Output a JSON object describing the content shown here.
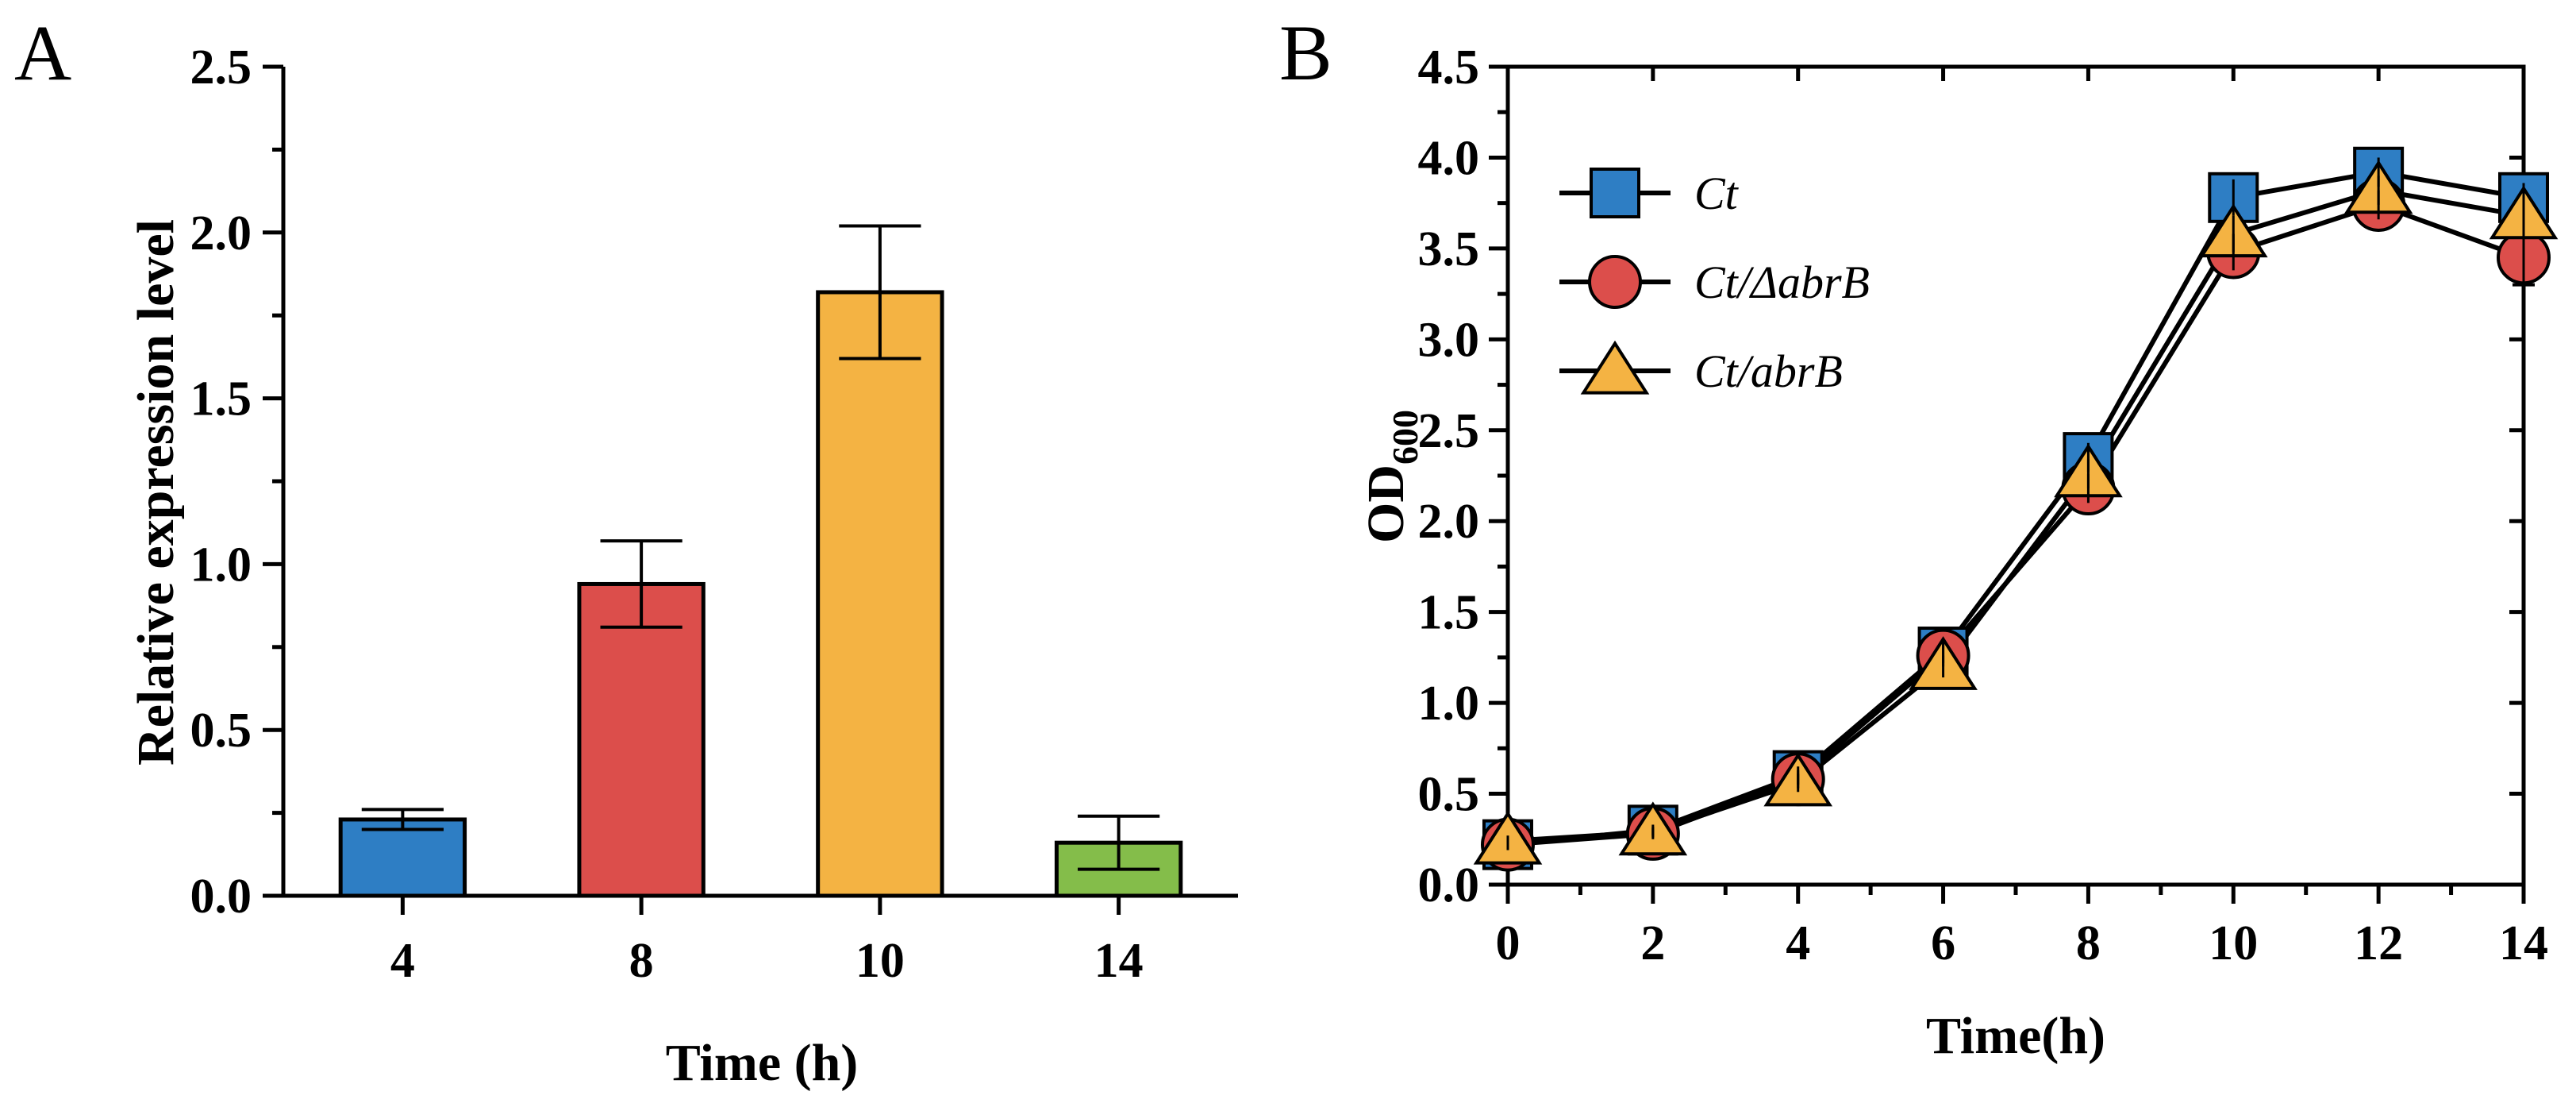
{
  "chart_data": [
    {
      "panel": "A",
      "type": "bar",
      "title": "",
      "xlabel": "Time (h)",
      "ylabel": "Relative expression level",
      "categories": [
        "4",
        "8",
        "10",
        "14"
      ],
      "values": [
        0.23,
        0.94,
        1.82,
        0.16
      ],
      "errors": [
        0.03,
        0.13,
        0.2,
        0.08
      ],
      "colors": [
        "#2e7ec4",
        "#dc4e4b",
        "#f4b343",
        "#84bd4a"
      ],
      "ylim": [
        0,
        2.5
      ],
      "yticks": [
        "0.0",
        "0.5",
        "1.0",
        "1.5",
        "2.0",
        "2.5"
      ],
      "grid": false
    },
    {
      "panel": "B",
      "type": "line",
      "title": "",
      "xlabel": "Time(h)",
      "ylabel": "OD",
      "ylabel_sub": "600",
      "x": [
        0,
        2,
        4,
        6,
        8,
        10,
        12,
        14
      ],
      "xlim": [
        0,
        14
      ],
      "ylim": [
        0,
        4.5
      ],
      "xticks": [
        "0",
        "2",
        "4",
        "6",
        "8",
        "10",
        "12",
        "14"
      ],
      "yticks": [
        "0.0",
        "0.5",
        "1.0",
        "1.5",
        "2.0",
        "2.5",
        "3.0",
        "3.5",
        "4.0",
        "4.5"
      ],
      "legend_position": "top-left",
      "grid": false,
      "series": [
        {
          "name": "Ct",
          "marker": "square",
          "color": "#2e7ec4",
          "values": [
            0.22,
            0.3,
            0.6,
            1.28,
            2.35,
            3.78,
            3.92,
            3.78
          ],
          "errors": [
            0.03,
            0.03,
            0.05,
            0.06,
            0.08,
            0.1,
            0.08,
            0.08
          ]
        },
        {
          "name": "Ct/ΔabrB",
          "marker": "circle",
          "color": "#dc4e4b",
          "values": [
            0.22,
            0.28,
            0.58,
            1.26,
            2.18,
            3.48,
            3.74,
            3.45
          ],
          "errors": [
            0.03,
            0.03,
            0.05,
            0.06,
            0.08,
            0.1,
            0.08,
            0.15
          ]
        },
        {
          "name": "Ct/abrB",
          "marker": "triangle",
          "color": "#f4b343",
          "values": [
            0.24,
            0.29,
            0.56,
            1.2,
            2.26,
            3.58,
            3.82,
            3.68
          ],
          "errors": [
            0.03,
            0.03,
            0.05,
            0.06,
            0.08,
            0.1,
            0.08,
            0.08
          ]
        }
      ]
    }
  ]
}
